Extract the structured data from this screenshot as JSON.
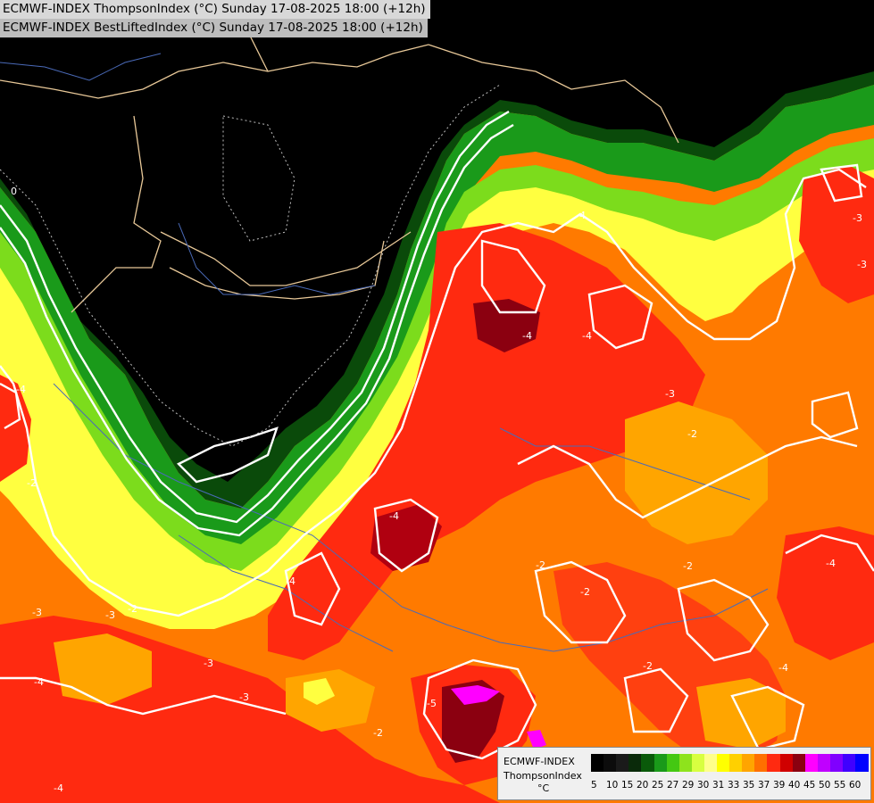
{
  "header": {
    "line1": "ECMWF-INDEX ThompsonIndex (°C) Sunday 17-08-2025 18:00 (+12h)",
    "line2": "ECMWF-INDEX BestLiftedIndex (°C) Sunday 17-08-2025 18:00 (+12h)"
  },
  "legend": {
    "model": "ECMWF-INDEX",
    "parameter": "ThompsonIndex",
    "unit": "°C",
    "colors": [
      "#000000",
      "#0c0c0c",
      "#1a1a1a",
      "#0a2a0a",
      "#0a5a0a",
      "#1a9a1a",
      "#44c812",
      "#8ee31c",
      "#d8ff40",
      "#ffff8a",
      "#ffff00",
      "#ffd000",
      "#ffa500",
      "#ff7000",
      "#ff2a10",
      "#d00000",
      "#8b0010",
      "#ff00ff",
      "#c000ff",
      "#8000ff",
      "#4000ff",
      "#0000ff"
    ],
    "ticks": [
      "5",
      "10",
      "15",
      "20",
      "25",
      "27",
      "29",
      "30",
      "31",
      "33",
      "35",
      "37",
      "39",
      "40",
      "45",
      "50",
      "55",
      "60"
    ]
  },
  "contour_labels": [
    "0",
    "-4",
    "-3",
    "-4",
    "-3",
    "-4",
    "-3",
    "-3",
    "-2",
    "-3",
    "-2",
    "-4",
    "-2",
    "-2",
    "-3",
    "-2",
    "-3",
    "-4",
    "-2",
    "-2",
    "-4",
    "-5",
    "-4",
    "-3",
    "-4",
    "-2",
    "-4",
    "-4"
  ]
}
